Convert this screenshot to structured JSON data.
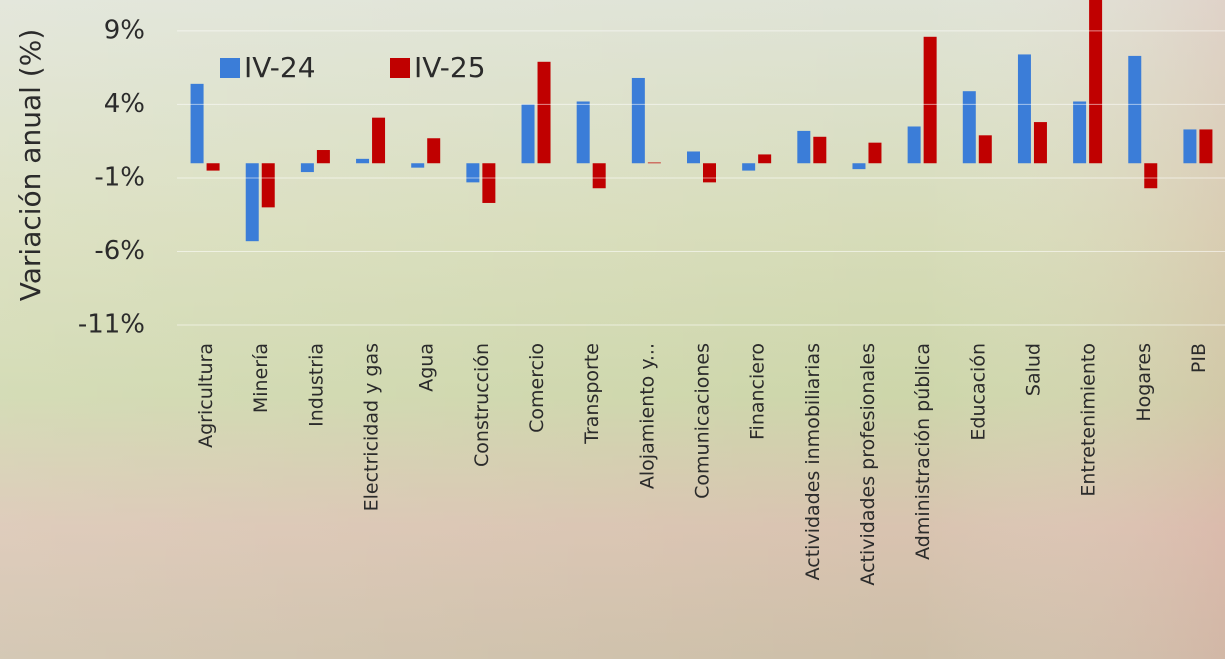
{
  "chart_data": {
    "type": "bar",
    "y_label": "Variación anual (%)",
    "categories": [
      "Agricultura",
      "Minería",
      "Industria",
      "Electricidad y gas",
      "Agua",
      "Construcción",
      "Comercio",
      "Transporte",
      "Alojamiento y...",
      "Comunicaciones",
      "Financiero",
      "Actividades inmobiliarias",
      "Actividades profesionales",
      "Administración pública",
      "Educación",
      "Salud",
      "Entretenimiento",
      "Hogares",
      "PIB"
    ],
    "series": [
      {
        "name": "IV-24",
        "color": "#3b7dd8",
        "values": [
          5.4,
          -5.3,
          -0.6,
          0.3,
          -0.3,
          -1.3,
          4.0,
          4.2,
          5.8,
          0.8,
          -0.5,
          2.2,
          -0.4,
          2.5,
          4.9,
          7.4,
          4.2,
          7.3,
          2.3
        ]
      },
      {
        "name": "IV-25",
        "color": "#c00000",
        "values": [
          -0.5,
          -3.0,
          0.9,
          3.1,
          1.7,
          -2.7,
          6.9,
          -1.7,
          0.05,
          -1.3,
          0.6,
          1.8,
          1.4,
          8.6,
          1.9,
          2.8,
          11.2,
          -1.7,
          2.3
        ]
      }
    ],
    "ylim": [
      -11,
      11
    ],
    "yticks": [
      {
        "value": 9,
        "label": "9%"
      },
      {
        "value": 4,
        "label": "4%"
      },
      {
        "value": -1,
        "label": "-1%"
      },
      {
        "value": -6,
        "label": "-6%"
      },
      {
        "value": -11,
        "label": "-11%"
      }
    ],
    "grid": true
  }
}
